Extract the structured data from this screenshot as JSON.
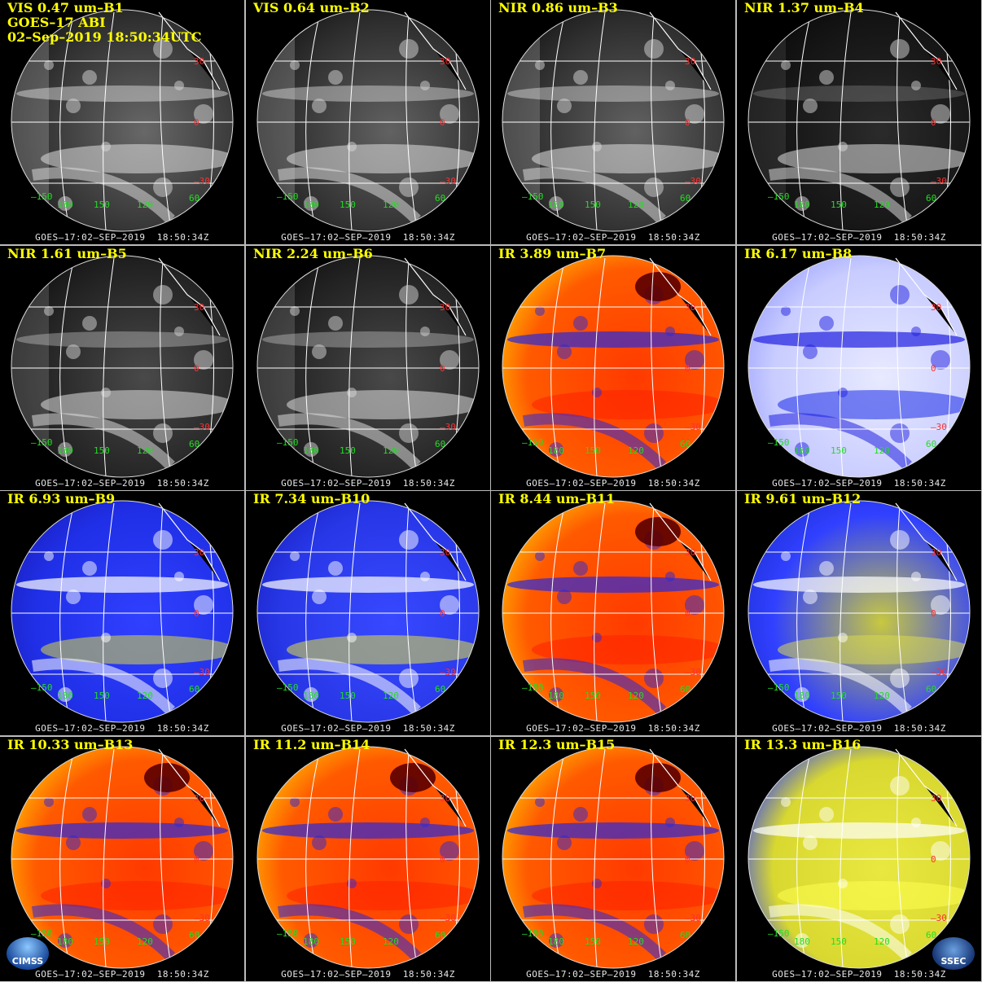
{
  "header": {
    "line2": "GOES–17 ABI",
    "line3": "02–Sep–2019 18:50:34UTC"
  },
  "footer": "GOES–17:02–SEP–2019  18:50:34Z",
  "lat_labels": [
    "30",
    "0",
    "–30"
  ],
  "lon_labels": [
    "–150",
    "180",
    "150",
    "120",
    "60"
  ],
  "lat_label_color": "#ff3030",
  "lon_label_color": "#22dd22",
  "logos": {
    "left": "CIMSS",
    "right": "SSEC"
  },
  "panels": [
    {
      "title": "VIS 0.47 um–B1",
      "palette": "vis",
      "brightness": 0.85
    },
    {
      "title": "VIS 0.64 um–B2",
      "palette": "vis",
      "brightness": 0.8
    },
    {
      "title": "NIR 0.86 um–B3",
      "palette": "vis",
      "brightness": 0.8
    },
    {
      "title": "NIR 1.37 um–B4",
      "palette": "vis",
      "brightness": 0.35
    },
    {
      "title": "NIR 1.61 um–B5",
      "palette": "vis",
      "brightness": 0.6
    },
    {
      "title": "NIR 2.24 um–B6",
      "palette": "vis",
      "brightness": 0.6
    },
    {
      "title": "IR 3.89 um–B7",
      "palette": "ir-warm"
    },
    {
      "title": "IR 6.17 um–B8",
      "palette": "wv-light"
    },
    {
      "title": "IR 6.93 um–B9",
      "palette": "wv-blue"
    },
    {
      "title": "IR 7.34 um–B10",
      "palette": "wv-blue-yellow"
    },
    {
      "title": "IR 8.44 um–B11",
      "palette": "ir-warm"
    },
    {
      "title": "IR 9.61 um–B12",
      "palette": "ozone"
    },
    {
      "title": "IR 10.33 um–B13",
      "palette": "ir-warm"
    },
    {
      "title": "IR 11.2 um–B14",
      "palette": "ir-warm"
    },
    {
      "title": "IR 12.3 um–B15",
      "palette": "ir-warm"
    },
    {
      "title": "IR 13.3 um–B16",
      "palette": "co2"
    }
  ]
}
